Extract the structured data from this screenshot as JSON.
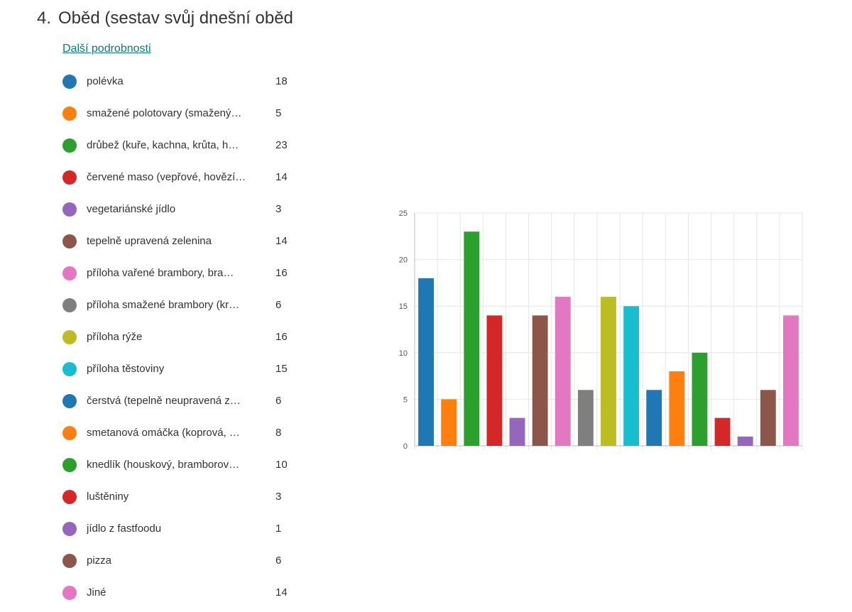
{
  "question": {
    "number": "4.",
    "title": "Oběd (sestav svůj dnešní oběd",
    "details_link": "Další podrobnosti"
  },
  "legend": [
    {
      "label": "polévka",
      "count": "18",
      "color": "#1f77b4"
    },
    {
      "label": "smažené polotovary (smažený…",
      "count": "5",
      "color": "#ff7f0e"
    },
    {
      "label": "drůbež (kuře, kachna, krůta, h…",
      "count": "23",
      "color": "#2ca02c"
    },
    {
      "label": "červené maso (vepřové, hovězí…",
      "count": "14",
      "color": "#d62728"
    },
    {
      "label": "vegetariánské jídlo",
      "count": "3",
      "color": "#9467bd"
    },
    {
      "label": "tepelně upravená zelenina",
      "count": "14",
      "color": "#8c564b"
    },
    {
      "label": "příloha vařené brambory, bra…",
      "count": "16",
      "color": "#e377c2"
    },
    {
      "label": "příloha smažené brambory (kr…",
      "count": "6",
      "color": "#7f7f7f"
    },
    {
      "label": "příloha rýže",
      "count": "16",
      "color": "#bcbd22"
    },
    {
      "label": "příloha těstoviny",
      "count": "15",
      "color": "#17becf"
    },
    {
      "label": "čerstvá (tepelně neupravená z…",
      "count": "6",
      "color": "#1f77b4"
    },
    {
      "label": "smetanová omáčka (koprová, …",
      "count": "8",
      "color": "#ff7f0e"
    },
    {
      "label": "knedlík (houskový, bramborov…",
      "count": "10",
      "color": "#2ca02c"
    },
    {
      "label": "luštěniny",
      "count": "3",
      "color": "#d62728"
    },
    {
      "label": "jídlo z fastfoodu",
      "count": "1",
      "color": "#9467bd"
    },
    {
      "label": "pizza",
      "count": "6",
      "color": "#8c564b"
    },
    {
      "label": "Jiné",
      "count": "14",
      "color": "#e377c2"
    }
  ],
  "chart_data": {
    "type": "bar",
    "categories": [
      "polévka",
      "smažené polotovary (smažený…",
      "drůbež (kuře, kachna, krůta, h…",
      "červené maso (vepřové, hovězí…",
      "vegetariánské jídlo",
      "tepelně upravená zelenina",
      "příloha vařené brambory, bra…",
      "příloha smažené brambory (kr…",
      "příloha rýže",
      "příloha těstoviny",
      "čerstvá (tepelně neupravená z…",
      "smetanová omáčka (koprová, …",
      "knedlík (houskový, bramborov…",
      "luštěniny",
      "jídlo z fastfoodu",
      "pizza",
      "Jiné"
    ],
    "values": [
      18,
      5,
      23,
      14,
      3,
      14,
      16,
      6,
      16,
      15,
      6,
      8,
      10,
      3,
      1,
      6,
      14
    ],
    "colors": [
      "#1f77b4",
      "#ff7f0e",
      "#2ca02c",
      "#d62728",
      "#9467bd",
      "#8c564b",
      "#e377c2",
      "#7f7f7f",
      "#bcbd22",
      "#17becf",
      "#1f77b4",
      "#ff7f0e",
      "#2ca02c",
      "#d62728",
      "#9467bd",
      "#8c564b",
      "#e377c2"
    ],
    "ylim": [
      0,
      25
    ],
    "yticks": [
      "0",
      "5",
      "10",
      "15",
      "20",
      "25"
    ],
    "grid": true,
    "title": "",
    "xlabel": "",
    "ylabel": ""
  }
}
